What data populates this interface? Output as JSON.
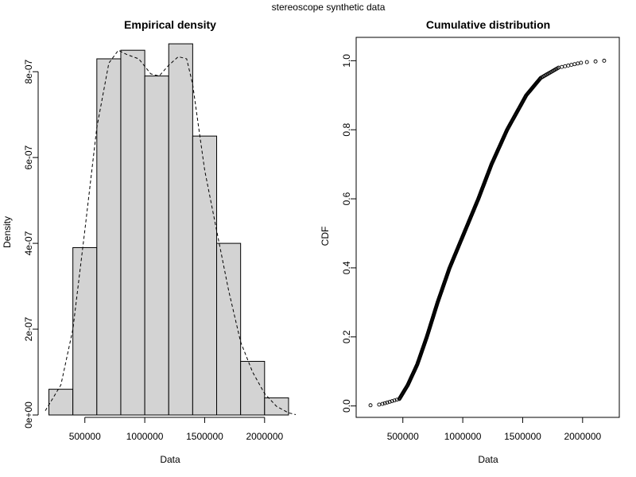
{
  "suptitle": "stereoscope synthetic data",
  "chart_data": [
    {
      "type": "bar",
      "subtype": "histogram_with_density",
      "title": "Empirical density",
      "xlabel": "Data",
      "ylabel": "Density",
      "xlim": [
        170000,
        2260000
      ],
      "ylim": [
        0,
        8.8e-07
      ],
      "x_ticks": [
        {
          "value": 500000,
          "label": "500000"
        },
        {
          "value": 1000000,
          "label": "1000000"
        },
        {
          "value": 1500000,
          "label": "1500000"
        },
        {
          "value": 2000000,
          "label": "2000000"
        }
      ],
      "y_ticks": [
        {
          "value": 0,
          "label": "0e+00"
        },
        {
          "value": 2e-07,
          "label": "2e-07"
        },
        {
          "value": 4e-07,
          "label": "4e-07"
        },
        {
          "value": 6e-07,
          "label": "6e-07"
        },
        {
          "value": 8e-07,
          "label": "8e-07"
        }
      ],
      "bins": [
        {
          "start": 200000,
          "end": 400000,
          "value": 6e-08
        },
        {
          "start": 400000,
          "end": 600000,
          "value": 3.9e-07
        },
        {
          "start": 600000,
          "end": 800000,
          "value": 8.3e-07
        },
        {
          "start": 800000,
          "end": 1000000,
          "value": 8.5e-07
        },
        {
          "start": 1000000,
          "end": 1200000,
          "value": 7.9e-07
        },
        {
          "start": 1200000,
          "end": 1400000,
          "value": 8.65e-07
        },
        {
          "start": 1400000,
          "end": 1600000,
          "value": 6.5e-07
        },
        {
          "start": 1600000,
          "end": 1800000,
          "value": 4e-07
        },
        {
          "start": 1800000,
          "end": 2000000,
          "value": 1.25e-07
        },
        {
          "start": 2000000,
          "end": 2200000,
          "value": 4e-08
        }
      ],
      "density_curve": {
        "x": [
          170000,
          300000,
          400000,
          500000,
          600000,
          700000,
          780000,
          850000,
          950000,
          1050000,
          1120000,
          1200000,
          1280000,
          1350000,
          1400000,
          1450000,
          1500000,
          1600000,
          1700000,
          1800000,
          1900000,
          2000000,
          2100000,
          2200000,
          2260000
        ],
        "y": [
          1e-08,
          7e-08,
          2e-07,
          4.3e-07,
          6.7e-07,
          8.2e-07,
          8.5e-07,
          8.4e-07,
          8.3e-07,
          7.95e-07,
          7.9e-07,
          8.15e-07,
          8.35e-07,
          8.3e-07,
          7.7e-07,
          6.7e-07,
          5.7e-07,
          4.3e-07,
          2.9e-07,
          1.7e-07,
          1e-07,
          5e-08,
          2e-08,
          5e-09,
          1e-09
        ]
      }
    },
    {
      "type": "scatter",
      "subtype": "empirical_cdf",
      "title": "Cumulative distribution",
      "xlabel": "Data",
      "ylabel": "CDF",
      "xlim": [
        170000,
        2260000
      ],
      "ylim": [
        -0.04,
        1.04
      ],
      "x_ticks": [
        {
          "value": 500000,
          "label": "500000"
        },
        {
          "value": 1000000,
          "label": "1000000"
        },
        {
          "value": 1500000,
          "label": "1500000"
        },
        {
          "value": 2000000,
          "label": "2000000"
        }
      ],
      "y_ticks": [
        {
          "value": 0,
          "label": "0.0"
        },
        {
          "value": 0.2,
          "label": "0.2"
        },
        {
          "value": 0.4,
          "label": "0.4"
        },
        {
          "value": 0.6,
          "label": "0.6"
        },
        {
          "value": 0.8,
          "label": "0.8"
        },
        {
          "value": 1.0,
          "label": "1.0"
        }
      ],
      "n_points": 500,
      "points_x_min": 230000,
      "points_x_max": 2180000,
      "quantiles": {
        "cdf": [
          0,
          0.005,
          0.02,
          0.06,
          0.12,
          0.2,
          0.3,
          0.4,
          0.5,
          0.6,
          0.7,
          0.8,
          0.9,
          0.95,
          0.98,
          0.995,
          1.0
        ],
        "x": [
          230000,
          320000,
          470000,
          540000,
          620000,
          700000,
          790000,
          890000,
          1010000,
          1130000,
          1240000,
          1370000,
          1530000,
          1650000,
          1800000,
          2000000,
          2180000
        ]
      }
    }
  ]
}
